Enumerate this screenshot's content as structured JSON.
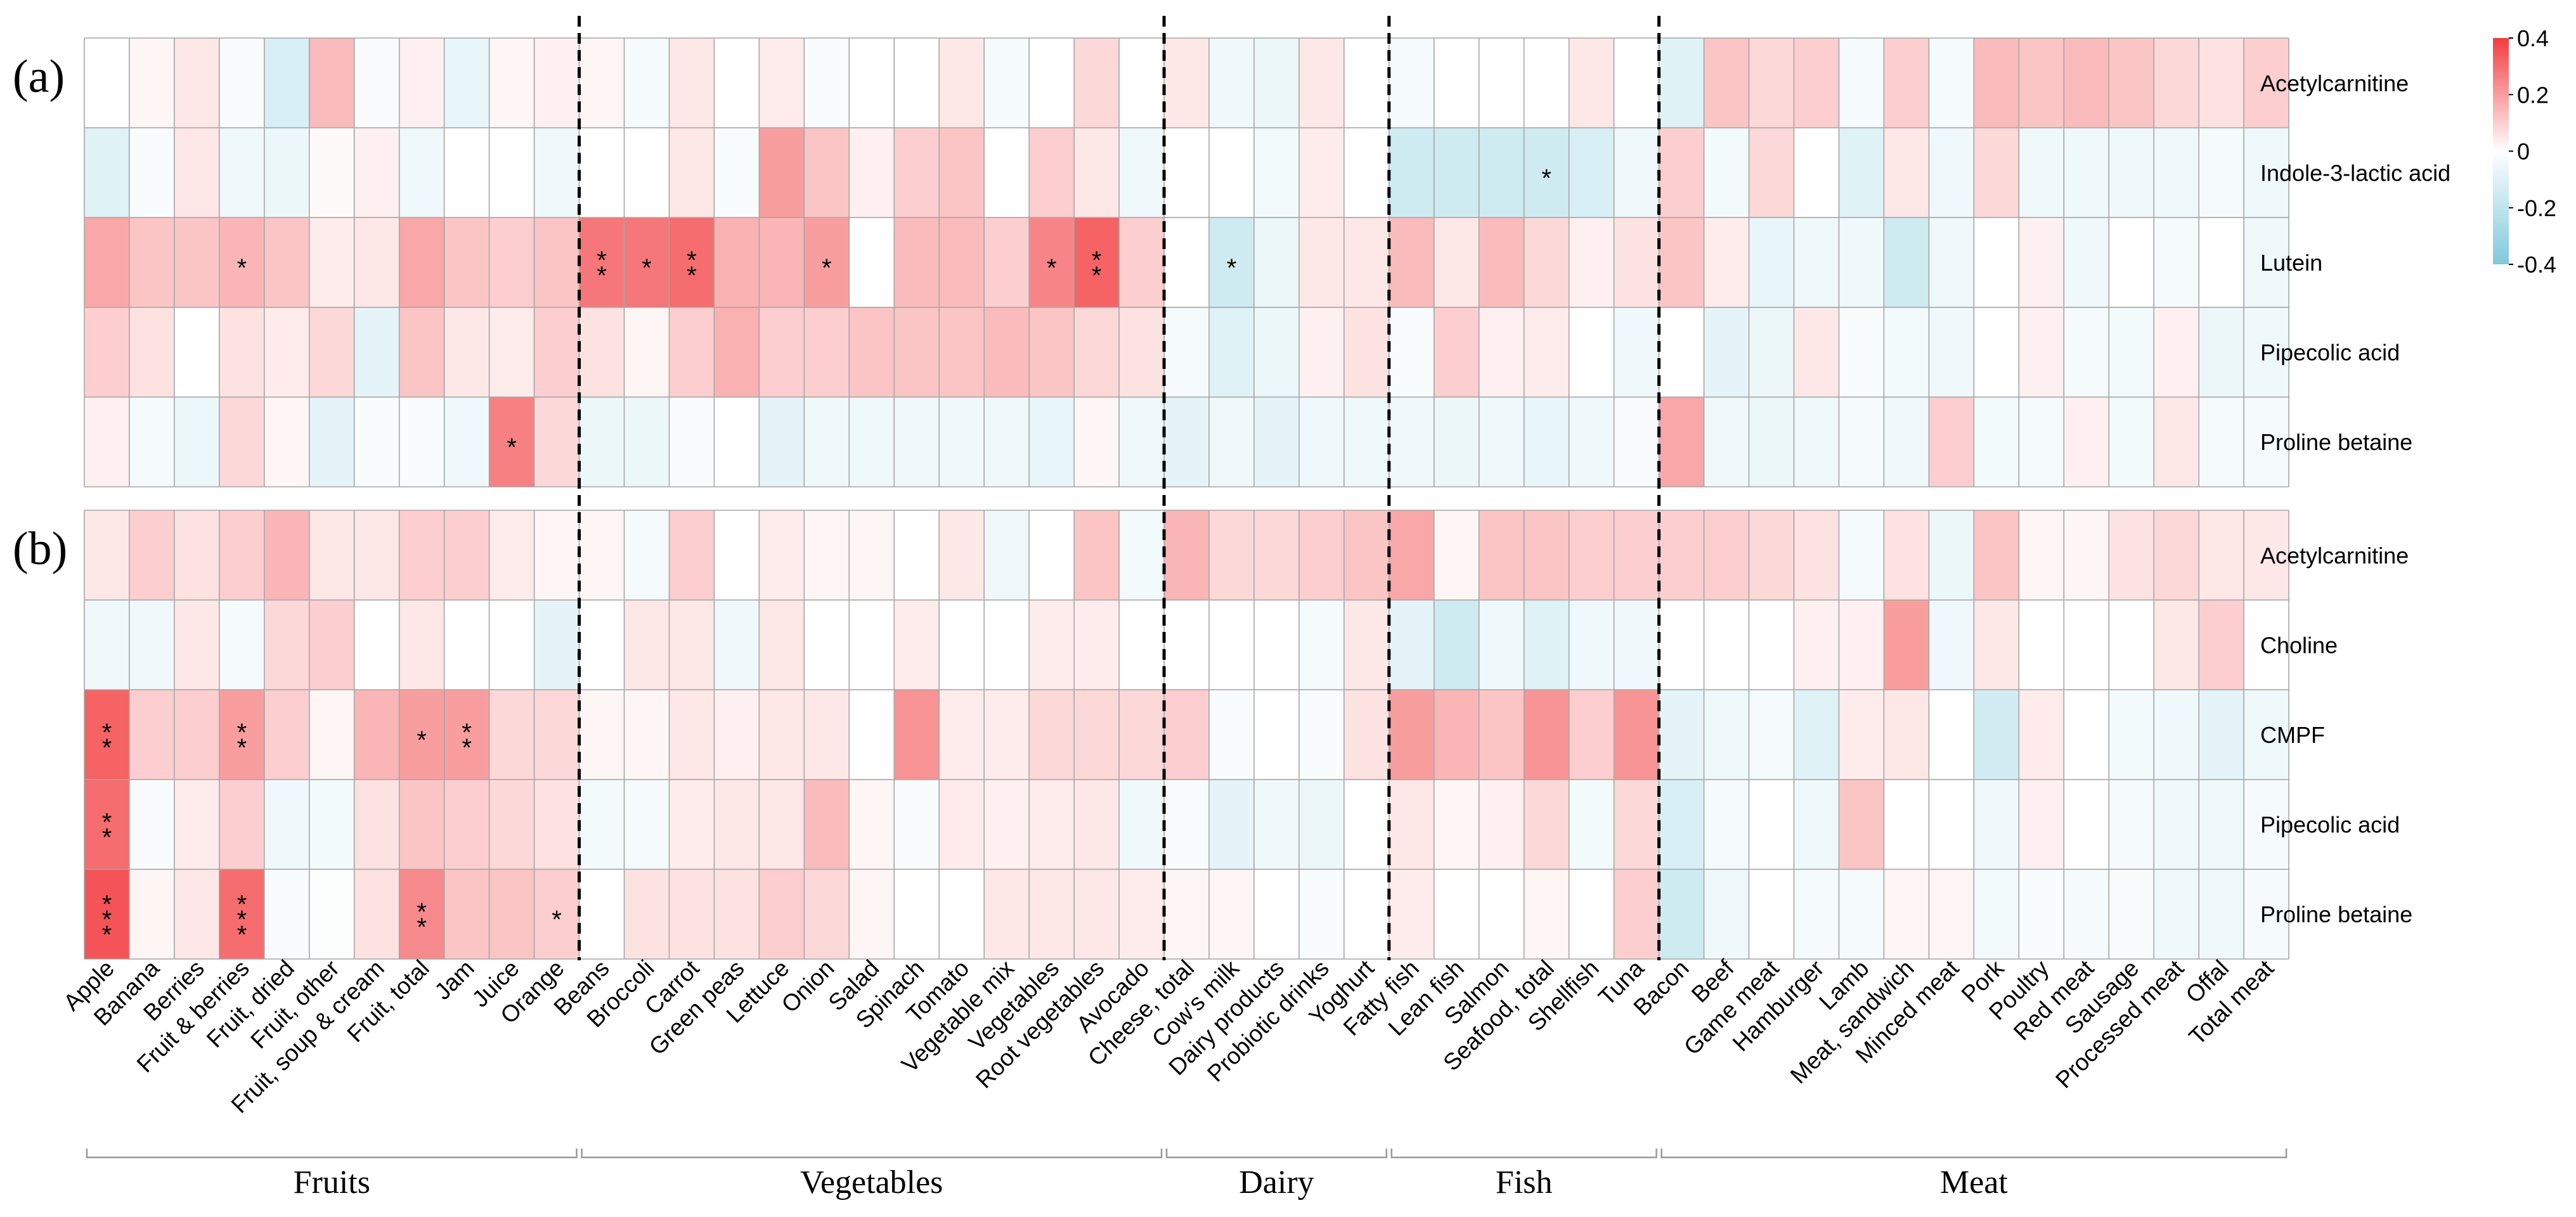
{
  "chart_data": {
    "type": "heatmap",
    "color_scale": {
      "min": -0.4,
      "max": 0.4,
      "low_color": "#7ec9dc",
      "mid_color": "#ffffff",
      "high_color": "#f23c3f",
      "ticks": [
        "0.4",
        "0.2",
        "0",
        "-0.2",
        "-0.4"
      ],
      "tick_values": [
        0.4,
        0.2,
        0,
        -0.2,
        -0.4
      ]
    },
    "foods": [
      "Apple",
      "Banana",
      "Berries",
      "Fruit & berries",
      "Fruit, dried",
      "Fruit, other",
      "Fruit, soup & cream",
      "Fruit, total",
      "Jam",
      "Juice",
      "Orange",
      "Beans",
      "Broccoli",
      "Carrot",
      "Green peas",
      "Lettuce",
      "Onion",
      "Salad",
      "Spinach",
      "Tomato",
      "Vegetable mix",
      "Vegetables",
      "Root vegetables",
      "Avocado",
      "Cheese, total",
      "Cow's milk",
      "Dairy products",
      "Probiotic drinks",
      "Yoghurt",
      "Fatty fish",
      "Lean fish",
      "Salmon",
      "Seafood, total",
      "Shellfish",
      "Tuna",
      "Bacon",
      "Beef",
      "Game meat",
      "Hamburger",
      "Lamb",
      "Meat, sandwich",
      "Minced meat",
      "Pork",
      "Poultry",
      "Red meat",
      "Sausage",
      "Processed meat",
      "Offal",
      "Total meat"
    ],
    "groups": [
      {
        "name": "Fruits",
        "first": 0,
        "last": 10
      },
      {
        "name": "Vegetables",
        "first": 11,
        "last": 23
      },
      {
        "name": "Dairy",
        "first": 24,
        "last": 28
      },
      {
        "name": "Fish",
        "first": 29,
        "last": 34
      },
      {
        "name": "Meat",
        "first": 35,
        "last": 48
      }
    ],
    "panels": [
      {
        "label": "(a)",
        "rows": [
          {
            "name": "Acetylcarnitine",
            "values": [
              0.0,
              0.02,
              0.05,
              -0.02,
              -0.12,
              0.14,
              -0.02,
              0.03,
              -0.07,
              0.02,
              0.03,
              0.02,
              -0.03,
              0.05,
              0.0,
              0.04,
              -0.02,
              0.0,
              0.0,
              0.05,
              -0.03,
              0.0,
              0.08,
              0.0,
              0.05,
              -0.05,
              -0.06,
              0.05,
              0.0,
              -0.03,
              0.0,
              0.0,
              0.0,
              0.05,
              0.0,
              -0.1,
              0.12,
              0.08,
              0.1,
              -0.03,
              0.1,
              -0.03,
              0.14,
              0.12,
              0.14,
              0.12,
              0.08,
              0.06,
              0.1
            ],
            "stars": {}
          },
          {
            "name": "Indole-3-lactic acid",
            "values": [
              -0.1,
              -0.02,
              0.05,
              -0.05,
              -0.06,
              0.01,
              0.03,
              -0.05,
              0.0,
              0.0,
              -0.05,
              0.0,
              0.0,
              0.05,
              -0.02,
              0.2,
              0.12,
              0.03,
              0.1,
              0.12,
              0.0,
              0.1,
              0.05,
              -0.05,
              0.0,
              0.0,
              -0.04,
              0.04,
              0.0,
              -0.15,
              -0.15,
              -0.15,
              -0.15,
              -0.12,
              -0.05,
              0.1,
              -0.04,
              0.08,
              0.0,
              -0.1,
              0.05,
              -0.05,
              0.08,
              -0.05,
              -0.05,
              -0.05,
              -0.05,
              -0.03,
              -0.05
            ],
            "stars": {
              "32": "*"
            }
          },
          {
            "name": "Lutein",
            "values": [
              0.18,
              0.12,
              0.12,
              0.15,
              0.12,
              0.04,
              0.05,
              0.18,
              0.12,
              0.1,
              0.12,
              0.28,
              0.28,
              0.3,
              0.16,
              0.15,
              0.2,
              0.0,
              0.14,
              0.14,
              0.1,
              0.25,
              0.32,
              0.1,
              0.0,
              -0.15,
              -0.06,
              0.05,
              0.05,
              0.14,
              0.05,
              0.14,
              0.08,
              0.03,
              0.06,
              0.12,
              0.04,
              -0.07,
              -0.05,
              -0.05,
              -0.15,
              -0.05,
              0.0,
              0.03,
              -0.05,
              0.0,
              -0.03,
              0.0,
              -0.05
            ],
            "stars": {
              "3": "*",
              "11": "**",
              "12": "*",
              "13": "**",
              "16": "*",
              "21": "*",
              "22": "**",
              "25": "*"
            }
          },
          {
            "name": "Pipecolic acid",
            "values": [
              0.1,
              0.06,
              0.0,
              0.06,
              0.04,
              0.08,
              -0.08,
              0.12,
              0.05,
              0.04,
              0.1,
              0.06,
              0.02,
              0.1,
              0.16,
              0.1,
              0.1,
              0.12,
              0.12,
              0.12,
              0.14,
              0.12,
              0.08,
              0.06,
              -0.03,
              -0.1,
              -0.06,
              0.03,
              0.06,
              -0.02,
              0.1,
              0.03,
              0.04,
              0.0,
              -0.05,
              0.0,
              -0.08,
              -0.06,
              0.05,
              -0.02,
              -0.04,
              -0.05,
              0.0,
              0.03,
              -0.03,
              -0.04,
              0.03,
              -0.06,
              -0.05
            ],
            "stars": {}
          },
          {
            "name": "Proline betaine",
            "values": [
              0.03,
              -0.03,
              -0.06,
              0.08,
              0.02,
              -0.08,
              -0.02,
              -0.02,
              -0.05,
              0.26,
              0.08,
              -0.06,
              -0.06,
              -0.02,
              0.0,
              -0.08,
              -0.05,
              -0.05,
              -0.05,
              -0.05,
              -0.05,
              -0.07,
              0.02,
              -0.05,
              -0.08,
              -0.05,
              -0.08,
              -0.05,
              -0.05,
              -0.05,
              -0.06,
              -0.05,
              -0.07,
              -0.05,
              -0.02,
              0.18,
              -0.05,
              -0.06,
              -0.05,
              -0.03,
              -0.05,
              0.1,
              -0.04,
              -0.03,
              0.03,
              -0.04,
              0.05,
              -0.03,
              -0.03
            ],
            "stars": {
              "9": "*"
            }
          }
        ]
      },
      {
        "label": "(b)",
        "rows": [
          {
            "name": "Acetylcarnitine",
            "values": [
              0.05,
              0.1,
              0.06,
              0.1,
              0.15,
              0.05,
              0.05,
              0.1,
              0.1,
              0.04,
              0.02,
              0.02,
              -0.03,
              0.1,
              0.0,
              0.04,
              0.02,
              0.02,
              0.0,
              0.05,
              -0.05,
              0.0,
              0.12,
              -0.04,
              0.15,
              0.08,
              0.08,
              0.1,
              0.12,
              0.18,
              0.02,
              0.12,
              0.12,
              0.1,
              0.1,
              0.1,
              0.1,
              0.08,
              0.06,
              -0.03,
              0.06,
              -0.06,
              0.12,
              0.02,
              0.02,
              0.06,
              0.08,
              0.05,
              0.05
            ],
            "stars": {}
          },
          {
            "name": "Choline",
            "values": [
              -0.05,
              -0.05,
              0.05,
              -0.03,
              0.08,
              0.1,
              0.0,
              0.05,
              0.0,
              0.0,
              -0.08,
              0.0,
              0.05,
              0.05,
              -0.05,
              0.05,
              0.0,
              0.0,
              0.04,
              0.0,
              0.0,
              0.04,
              0.04,
              0.0,
              0.0,
              0.0,
              0.0,
              -0.03,
              0.05,
              -0.08,
              -0.15,
              -0.05,
              -0.1,
              -0.05,
              -0.05,
              0.0,
              0.0,
              0.0,
              0.03,
              0.03,
              0.2,
              -0.05,
              0.05,
              0.0,
              0.0,
              0.0,
              0.05,
              0.1,
              0.0
            ],
            "stars": {}
          },
          {
            "name": "CMPF",
            "values": [
              0.32,
              0.1,
              0.1,
              0.2,
              0.1,
              0.02,
              0.15,
              0.2,
              0.2,
              0.08,
              0.08,
              0.02,
              0.02,
              0.05,
              0.03,
              0.05,
              0.05,
              0.0,
              0.22,
              0.04,
              0.04,
              0.08,
              0.08,
              0.08,
              0.1,
              -0.02,
              0.0,
              -0.02,
              0.06,
              0.2,
              0.15,
              0.12,
              0.22,
              0.1,
              0.22,
              -0.08,
              -0.05,
              -0.03,
              -0.1,
              0.04,
              0.05,
              0.0,
              -0.14,
              0.04,
              0.0,
              -0.04,
              -0.05,
              -0.08,
              -0.05
            ],
            "stars": {
              "0": "**",
              "3": "**",
              "7": "*",
              "8": "**"
            }
          },
          {
            "name": "Pipecolic acid",
            "values": [
              0.3,
              -0.02,
              0.04,
              0.1,
              -0.05,
              -0.04,
              0.06,
              0.12,
              0.1,
              0.08,
              0.06,
              -0.04,
              -0.03,
              0.04,
              0.05,
              0.05,
              0.14,
              0.02,
              -0.02,
              0.04,
              0.03,
              0.04,
              0.05,
              -0.05,
              -0.02,
              -0.08,
              -0.05,
              -0.06,
              0.0,
              0.05,
              0.02,
              0.03,
              0.08,
              -0.04,
              0.08,
              -0.12,
              -0.03,
              0.0,
              -0.05,
              0.12,
              0.0,
              0.0,
              -0.05,
              0.03,
              0.0,
              -0.03,
              -0.05,
              -0.05,
              -0.03
            ],
            "stars": {
              "0": "**"
            }
          },
          {
            "name": "Proline betaine",
            "values": [
              0.35,
              0.02,
              0.05,
              0.3,
              -0.02,
              -0.01,
              0.06,
              0.24,
              0.12,
              0.12,
              0.1,
              0.0,
              0.06,
              0.06,
              0.06,
              0.1,
              0.08,
              0.02,
              0.0,
              0.0,
              0.05,
              0.05,
              0.05,
              0.04,
              0.02,
              0.02,
              0.0,
              -0.02,
              0.0,
              0.04,
              0.0,
              0.0,
              0.02,
              0.0,
              0.1,
              -0.15,
              -0.05,
              0.0,
              -0.03,
              -0.03,
              0.02,
              0.02,
              -0.04,
              -0.02,
              -0.03,
              -0.02,
              -0.05,
              -0.05,
              -0.03
            ],
            "stars": {
              "0": "***",
              "3": "***",
              "7": "**",
              "10": "*"
            }
          }
        ]
      }
    ]
  }
}
